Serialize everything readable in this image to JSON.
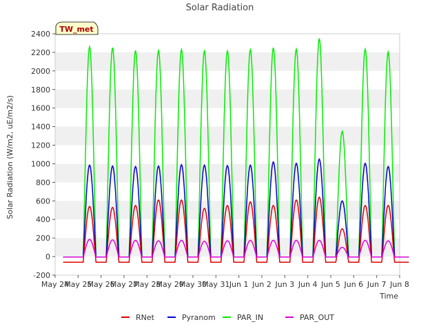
{
  "chart_data": {
    "type": "line",
    "title": "Solar Radiation",
    "xlabel": "Time",
    "ylabel": "Solar Radiation (W/m2, uE/m2/s)",
    "station_label": "TW_met",
    "ylim": [
      -200,
      2400
    ],
    "yticks": [
      -200,
      0,
      200,
      400,
      600,
      800,
      1000,
      1200,
      1400,
      1600,
      1800,
      2000,
      2200,
      2400
    ],
    "xlim": [
      0,
      15
    ],
    "xticks": [
      0,
      1,
      2,
      3,
      4,
      5,
      6,
      7,
      8,
      9,
      10,
      11,
      12,
      13,
      14,
      15
    ],
    "xtick_labels": [
      "May 24",
      "May 25",
      "May 26",
      "May 27",
      "May 28",
      "May 29",
      "May 30",
      "May 31",
      "Jun 1",
      "Jun 2",
      "Jun 3",
      "Jun 4",
      "Jun 5",
      "Jun 6",
      "Jun 7",
      "Jun 8"
    ],
    "grid_bands": true,
    "legend_position": "bottom",
    "series": [
      {
        "name": "RNet",
        "color": "#dd0000",
        "night": -60,
        "peaks": [
          540,
          530,
          550,
          610,
          610,
          520,
          550,
          590,
          550,
          610,
          640,
          300,
          550,
          550
        ]
      },
      {
        "name": "Pyranom",
        "color": "#0000cc",
        "night": -5,
        "peaks": [
          985,
          975,
          970,
          975,
          990,
          985,
          980,
          985,
          1020,
          1005,
          1050,
          600,
          1005,
          970
        ]
      },
      {
        "name": "PAR_IN",
        "color": "#00ee00",
        "night": -5,
        "peaks": [
          2260,
          2250,
          2220,
          2220,
          2230,
          2215,
          2215,
          2230,
          2250,
          2235,
          2350,
          1350,
          2235,
          2205
        ]
      },
      {
        "name": "PAR_OUT",
        "color": "#dd00dd",
        "night": -5,
        "peaks": [
          185,
          180,
          175,
          170,
          175,
          165,
          170,
          175,
          175,
          175,
          175,
          100,
          175,
          170
        ]
      }
    ]
  }
}
